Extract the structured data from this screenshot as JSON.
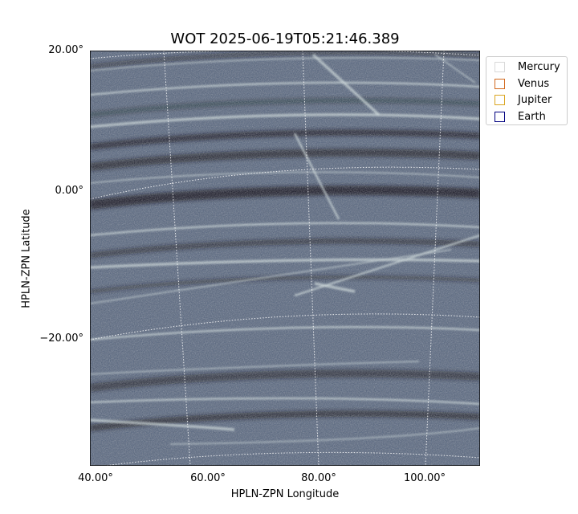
{
  "title": "WOT 2025-06-19T05:21:46.389",
  "axes": {
    "xlabel": "HPLN-ZPN Longitude",
    "ylabel": "HPLN-ZPN Latitude",
    "xticks": [
      "40.00°",
      "60.00°",
      "80.00°",
      "100.00°"
    ],
    "yticks": [
      "20.00°",
      "0.00°",
      "−20.00°"
    ]
  },
  "legend": {
    "items": [
      {
        "label": "Mercury",
        "color": "#d9d9d9"
      },
      {
        "label": "Venus",
        "color": "#d2691e"
      },
      {
        "label": "Jupiter",
        "color": "#daa520"
      },
      {
        "label": "Earth",
        "color": "#000080"
      }
    ]
  },
  "image": {
    "background_color": "#4f5f7a",
    "streak_color": "#d6e4e6",
    "dark_band_color": "#0b0f1c"
  }
}
